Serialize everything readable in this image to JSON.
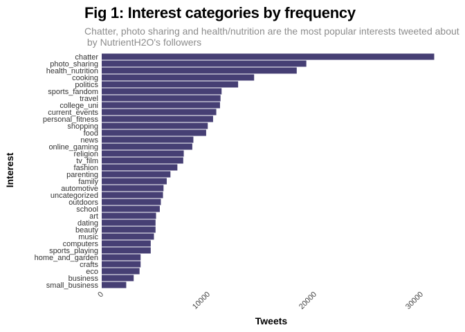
{
  "chart_data": {
    "type": "bar",
    "orientation": "horizontal",
    "title": "Fig 1: Interest categories by frequency",
    "subtitle_lines": [
      "Chatter, photo sharing and health/nutrition are the most popular interests tweeted about",
      " by NutrientH2O's followers"
    ],
    "xlabel": "Tweets",
    "ylabel": "Interest",
    "bar_color": "#463f74",
    "xlim": [
      0,
      31000
    ],
    "xticks": [
      0,
      10000,
      20000,
      30000
    ],
    "xtick_labels": [
      "0",
      "10000",
      "20000",
      "30000"
    ],
    "grid": false,
    "categories": [
      "chatter",
      "photo_sharing",
      "health_nutrition",
      "cooking",
      "politics",
      "sports_fandom",
      "travel",
      "college_uni",
      "current_events",
      "personal_fitness",
      "shopping",
      "food",
      "news",
      "online_gaming",
      "religion",
      "tv_film",
      "fashion",
      "parenting",
      "family",
      "automotive",
      "uncategorized",
      "outdoors",
      "school",
      "art",
      "dating",
      "beauty",
      "music",
      "computers",
      "sports_playing",
      "home_and_garden",
      "crafts",
      "eco",
      "business",
      "small_business"
    ],
    "values": [
      31200,
      19200,
      18300,
      14300,
      12800,
      11250,
      11150,
      11100,
      10750,
      10450,
      9950,
      9800,
      8600,
      8500,
      7700,
      7650,
      7100,
      6450,
      6100,
      5800,
      5750,
      5550,
      5450,
      5100,
      5050,
      5050,
      4900,
      4600,
      4600,
      3650,
      3650,
      3550,
      3000,
      2300
    ]
  }
}
